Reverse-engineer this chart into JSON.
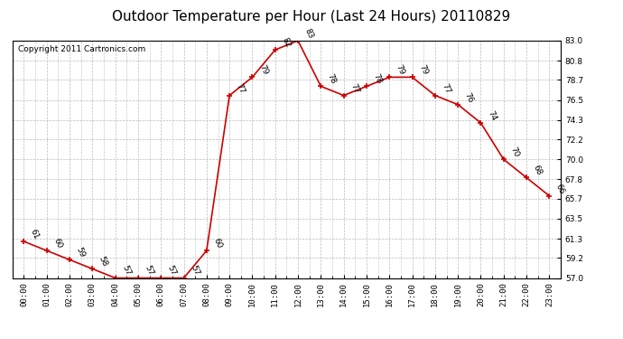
{
  "title": "Outdoor Temperature per Hour (Last 24 Hours) 20110829",
  "copyright_text": "Copyright 2011 Cartronics.com",
  "hours": [
    "00:00",
    "01:00",
    "02:00",
    "03:00",
    "04:00",
    "05:00",
    "06:00",
    "07:00",
    "08:00",
    "09:00",
    "10:00",
    "11:00",
    "12:00",
    "13:00",
    "14:00",
    "15:00",
    "16:00",
    "17:00",
    "18:00",
    "19:00",
    "20:00",
    "21:00",
    "22:00",
    "23:00"
  ],
  "temps": [
    61,
    60,
    59,
    58,
    57,
    57,
    57,
    57,
    60,
    77,
    79,
    82,
    83,
    78,
    77,
    78,
    79,
    79,
    77,
    76,
    74,
    70,
    68,
    66
  ],
  "ylim_min": 57.0,
  "ylim_max": 83.0,
  "yticks": [
    57.0,
    59.2,
    61.3,
    63.5,
    65.7,
    67.8,
    70.0,
    72.2,
    74.3,
    76.5,
    78.7,
    80.8,
    83.0
  ],
  "line_color": "#cc0000",
  "marker_color": "#cc0000",
  "bg_color": "#ffffff",
  "grid_color": "#bbbbbb",
  "title_fontsize": 11,
  "tick_fontsize": 6.5,
  "copyright_fontsize": 6.5,
  "annot_fontsize": 6.5
}
